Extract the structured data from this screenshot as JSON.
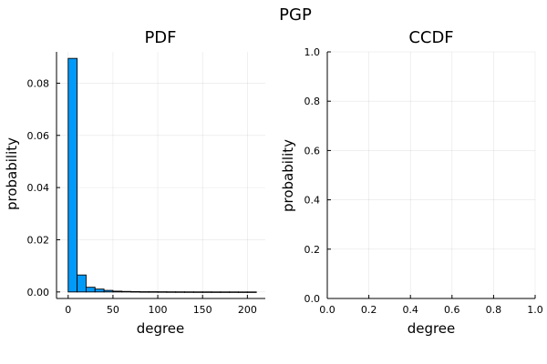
{
  "figure": {
    "title": "PGP"
  },
  "colors": {
    "bar_fill": "#009af9",
    "bar_edge": "#000000",
    "axis": "#000000",
    "background": "#ffffff"
  },
  "chart_data": [
    {
      "type": "bar",
      "subplot": "left",
      "title": "PDF",
      "xlabel": "degree",
      "ylabel": "probability",
      "bin_width": 10,
      "bins": [
        {
          "x0": 0,
          "x1": 10,
          "value": 0.0895
        },
        {
          "x0": 10,
          "x1": 20,
          "value": 0.0065
        },
        {
          "x0": 20,
          "x1": 30,
          "value": 0.0018
        },
        {
          "x0": 30,
          "x1": 40,
          "value": 0.0011
        },
        {
          "x0": 40,
          "x1": 50,
          "value": 0.0006
        },
        {
          "x0": 50,
          "x1": 60,
          "value": 0.0003
        },
        {
          "x0": 60,
          "x1": 70,
          "value": 0.0002
        },
        {
          "x0": 70,
          "x1": 80,
          "value": 0.00015
        },
        {
          "x0": 80,
          "x1": 90,
          "value": 0.0001
        },
        {
          "x0": 90,
          "x1": 100,
          "value": 0.0001
        },
        {
          "x0": 100,
          "x1": 110,
          "value": 8e-05
        },
        {
          "x0": 110,
          "x1": 120,
          "value": 6e-05
        },
        {
          "x0": 120,
          "x1": 130,
          "value": 5e-05
        },
        {
          "x0": 130,
          "x1": 140,
          "value": 4e-05
        },
        {
          "x0": 140,
          "x1": 150,
          "value": 3e-05
        },
        {
          "x0": 150,
          "x1": 160,
          "value": 3e-05
        },
        {
          "x0": 160,
          "x1": 170,
          "value": 2e-05
        },
        {
          "x0": 170,
          "x1": 180,
          "value": 2e-05
        },
        {
          "x0": 180,
          "x1": 190,
          "value": 2e-05
        },
        {
          "x0": 190,
          "x1": 200,
          "value": 1e-05
        },
        {
          "x0": 200,
          "x1": 210,
          "value": 1e-05
        }
      ],
      "xlim": [
        -13,
        220
      ],
      "ylim": [
        -0.0025,
        0.092
      ],
      "xticks": [
        0,
        50,
        100,
        150,
        200
      ],
      "xtick_labels": [
        "0",
        "50",
        "100",
        "150",
        "200"
      ],
      "yticks": [
        0,
        0.02,
        0.04,
        0.06,
        0.08
      ],
      "ytick_labels": [
        "0.00",
        "0.02",
        "0.04",
        "0.06",
        "0.08"
      ],
      "grid": true
    },
    {
      "type": "line",
      "subplot": "right",
      "title": "CCDF",
      "xlabel": "degree",
      "ylabel": "probability",
      "series": [],
      "xlim": [
        0,
        1
      ],
      "ylim": [
        0,
        1
      ],
      "xticks": [
        0,
        0.2,
        0.4,
        0.6,
        0.8,
        1.0
      ],
      "xtick_labels": [
        "0.0",
        "0.2",
        "0.4",
        "0.6",
        "0.8",
        "1.0"
      ],
      "yticks": [
        0,
        0.2,
        0.4,
        0.6,
        0.8,
        1.0
      ],
      "ytick_labels": [
        "0.0",
        "0.2",
        "0.4",
        "0.6",
        "0.8",
        "1.0"
      ],
      "grid": true
    }
  ]
}
